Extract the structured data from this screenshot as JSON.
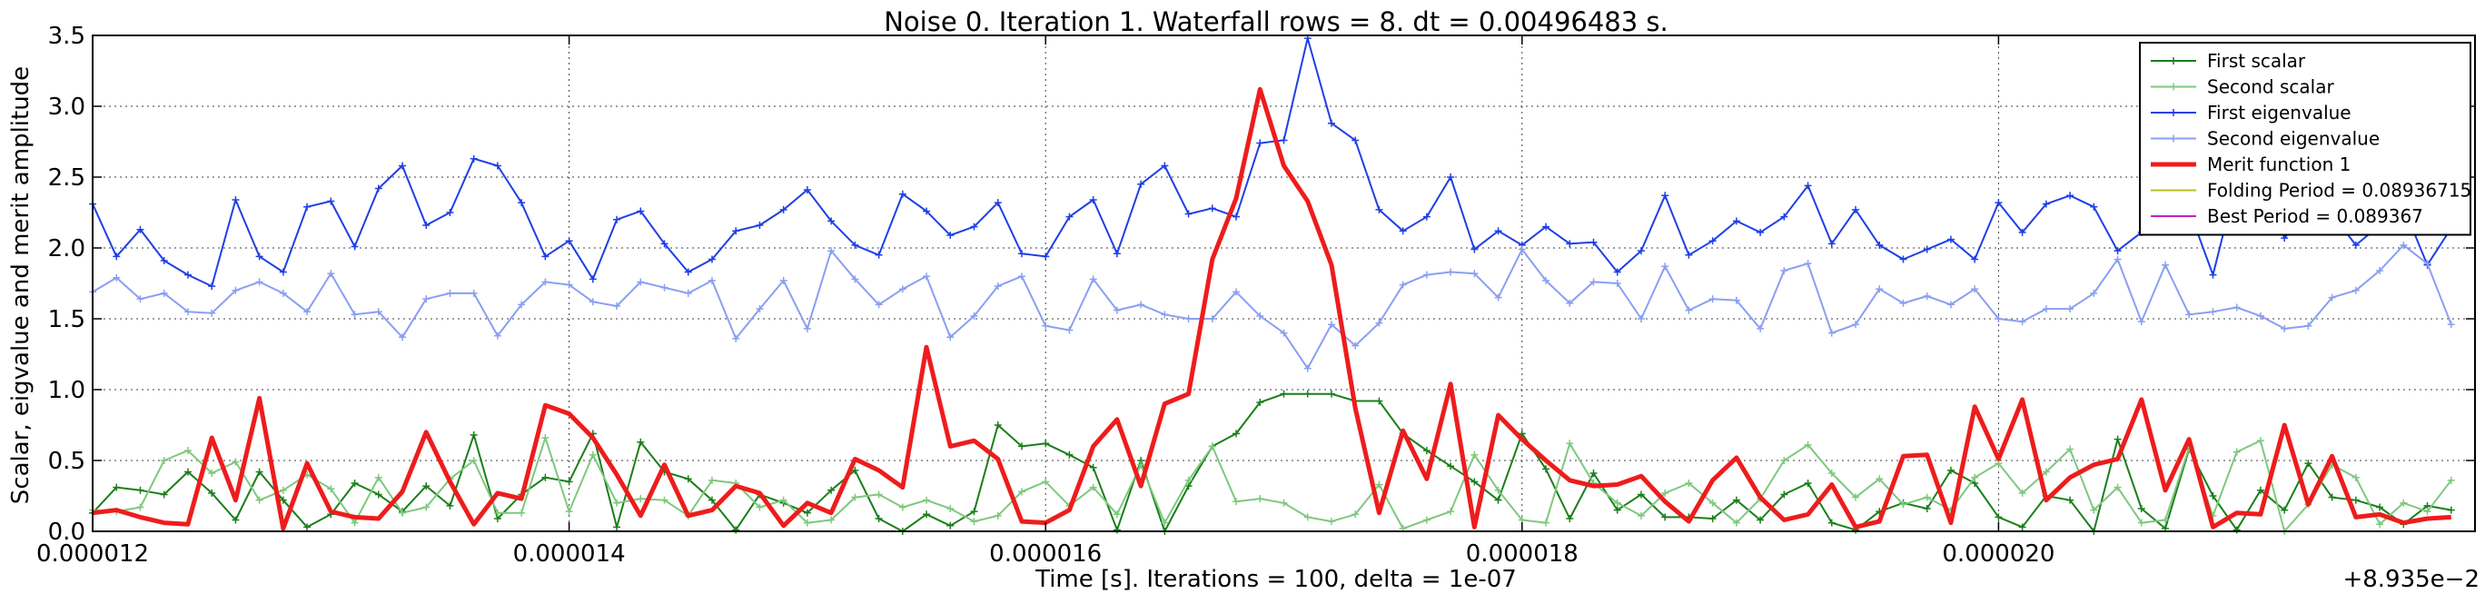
{
  "chart_data": {
    "type": "line",
    "title": "Noise 0. Iteration 1. Waterfall rows = 8. dt = 0.00496483 s.",
    "xlabel": "Time [s]. Iterations = 100, delta = 1e-07",
    "ylabel": "Scalar, eigvalue and merit amplitude",
    "x_offset_label": "+8.935e−2",
    "xlim": [
      0.0893612,
      0.0893622
    ],
    "ylim": [
      0,
      3.5
    ],
    "grid": true,
    "legend_position": "top-right",
    "x_ticks": [
      0.0893612,
      0.0893614,
      0.0893616,
      0.0893618,
      0.089362
    ],
    "x_tick_labels": [
      "0.000012",
      "0.000014",
      "0.000016",
      "0.000018",
      "0.000020"
    ],
    "y_ticks": [
      0,
      0.5,
      1.0,
      1.5,
      2.0,
      2.5,
      3.0,
      3.5
    ],
    "y_tick_labels": [
      "0.0",
      "0.5",
      "1.0",
      "1.5",
      "2.0",
      "2.5",
      "3.0",
      "3.5"
    ],
    "x": {
      "start": 0.0893612,
      "step": 1e-08,
      "count": 100
    },
    "vlines": [
      {
        "name": "Folding Period = 0.08936715",
        "x": 0.08936715,
        "color": "#bcbc1e"
      },
      {
        "name": "Best Period = 0.089367",
        "x": 0.089367,
        "color": "#c71ec7"
      }
    ],
    "series": [
      {
        "name": "First scalar",
        "color": "#1a7f1a",
        "style": "thin",
        "values": [
          0.13,
          0.31,
          0.29,
          0.26,
          0.42,
          0.27,
          0.08,
          0.42,
          0.22,
          0.03,
          0.12,
          0.34,
          0.26,
          0.14,
          0.32,
          0.18,
          0.68,
          0.09,
          0.26,
          0.38,
          0.35,
          0.69,
          0.03,
          0.63,
          0.42,
          0.37,
          0.22,
          0.01,
          0.26,
          0.2,
          0.13,
          0.29,
          0.43,
          0.09,
          0.0,
          0.12,
          0.04,
          0.14,
          0.75,
          0.6,
          0.62,
          0.54,
          0.45,
          0.01,
          0.5,
          0.0,
          0.32,
          0.6,
          0.69,
          0.91,
          0.97,
          0.97,
          0.97,
          0.92,
          0.92,
          0.69,
          0.57,
          0.46,
          0.35,
          0.22,
          0.69,
          0.44,
          0.09,
          0.41,
          0.15,
          0.26,
          0.1,
          0.1,
          0.09,
          0.22,
          0.08,
          0.26,
          0.34,
          0.06,
          0.01,
          0.14,
          0.2,
          0.16,
          0.43,
          0.34,
          0.1,
          0.03,
          0.25,
          0.22,
          0.0,
          0.65,
          0.16,
          0.02,
          0.58,
          0.25,
          0.01,
          0.29,
          0.15,
          0.48,
          0.24,
          0.22,
          0.17,
          0.05,
          0.18,
          0.15
        ]
      },
      {
        "name": "Second scalar",
        "color": "#7ec87e",
        "style": "thin",
        "values": [
          0.15,
          0.14,
          0.17,
          0.5,
          0.57,
          0.41,
          0.49,
          0.22,
          0.29,
          0.4,
          0.3,
          0.06,
          0.38,
          0.13,
          0.17,
          0.37,
          0.5,
          0.13,
          0.13,
          0.66,
          0.14,
          0.54,
          0.2,
          0.23,
          0.22,
          0.11,
          0.36,
          0.34,
          0.17,
          0.22,
          0.06,
          0.08,
          0.24,
          0.26,
          0.17,
          0.22,
          0.16,
          0.07,
          0.11,
          0.28,
          0.35,
          0.18,
          0.31,
          0.12,
          0.47,
          0.06,
          0.36,
          0.6,
          0.21,
          0.23,
          0.2,
          0.1,
          0.07,
          0.12,
          0.33,
          0.02,
          0.08,
          0.14,
          0.54,
          0.29,
          0.08,
          0.06,
          0.62,
          0.34,
          0.2,
          0.11,
          0.27,
          0.34,
          0.2,
          0.06,
          0.23,
          0.5,
          0.61,
          0.41,
          0.24,
          0.37,
          0.19,
          0.24,
          0.15,
          0.38,
          0.48,
          0.27,
          0.42,
          0.58,
          0.15,
          0.31,
          0.06,
          0.08,
          0.59,
          0.11,
          0.56,
          0.64,
          0.0,
          0.19,
          0.47,
          0.38,
          0.05,
          0.2,
          0.14,
          0.36
        ]
      },
      {
        "name": "First eigenvalue",
        "color": "#1f3fe6",
        "style": "thin",
        "values": [
          2.31,
          1.94,
          2.13,
          1.91,
          1.81,
          1.73,
          2.34,
          1.94,
          1.83,
          2.29,
          2.33,
          2.01,
          2.42,
          2.58,
          2.16,
          2.25,
          2.63,
          2.58,
          2.32,
          1.94,
          2.05,
          1.78,
          2.2,
          2.26,
          2.03,
          1.83,
          1.92,
          2.12,
          2.16,
          2.27,
          2.41,
          2.19,
          2.02,
          1.95,
          2.38,
          2.26,
          2.09,
          2.15,
          2.32,
          1.96,
          1.94,
          2.22,
          2.34,
          1.96,
          2.45,
          2.58,
          2.24,
          2.28,
          2.22,
          2.74,
          2.76,
          3.48,
          2.88,
          2.76,
          2.27,
          2.12,
          2.22,
          2.5,
          1.99,
          2.12,
          2.02,
          2.15,
          2.03,
          2.04,
          1.83,
          1.98,
          2.37,
          1.95,
          2.05,
          2.19,
          2.11,
          2.22,
          2.44,
          2.03,
          2.27,
          2.02,
          1.92,
          1.99,
          2.06,
          1.92,
          2.32,
          2.11,
          2.31,
          2.37,
          2.29,
          1.98,
          2.11,
          2.33,
          2.27,
          1.81,
          2.48,
          2.51,
          2.07,
          2.28,
          2.24,
          2.02,
          2.16,
          2.29,
          1.88,
          2.14
        ]
      },
      {
        "name": "Second eigenvalue",
        "color": "#8a9ff2",
        "style": "thin",
        "values": [
          1.69,
          1.79,
          1.64,
          1.68,
          1.55,
          1.54,
          1.7,
          1.76,
          1.68,
          1.55,
          1.82,
          1.53,
          1.55,
          1.37,
          1.64,
          1.68,
          1.68,
          1.38,
          1.6,
          1.76,
          1.74,
          1.62,
          1.59,
          1.76,
          1.72,
          1.68,
          1.77,
          1.36,
          1.57,
          1.77,
          1.43,
          1.98,
          1.78,
          1.6,
          1.71,
          1.8,
          1.37,
          1.52,
          1.73,
          1.8,
          1.45,
          1.42,
          1.78,
          1.56,
          1.6,
          1.53,
          1.5,
          1.5,
          1.69,
          1.52,
          1.4,
          1.15,
          1.46,
          1.31,
          1.47,
          1.74,
          1.81,
          1.83,
          1.82,
          1.65,
          1.99,
          1.77,
          1.61,
          1.76,
          1.75,
          1.5,
          1.87,
          1.56,
          1.64,
          1.63,
          1.43,
          1.84,
          1.89,
          1.4,
          1.46,
          1.71,
          1.61,
          1.66,
          1.6,
          1.71,
          1.5,
          1.48,
          1.57,
          1.57,
          1.68,
          1.92,
          1.48,
          1.88,
          1.53,
          1.55,
          1.58,
          1.52,
          1.43,
          1.45,
          1.65,
          1.7,
          1.84,
          2.02,
          1.89,
          1.46
        ]
      },
      {
        "name": "Merit function 1",
        "color": "#ee1c1c",
        "style": "thick",
        "values": [
          0.13,
          0.15,
          0.1,
          0.06,
          0.05,
          0.66,
          0.22,
          0.94,
          0.02,
          0.48,
          0.14,
          0.1,
          0.09,
          0.28,
          0.7,
          0.35,
          0.05,
          0.27,
          0.23,
          0.89,
          0.83,
          0.66,
          0.4,
          0.11,
          0.47,
          0.11,
          0.15,
          0.32,
          0.27,
          0.04,
          0.2,
          0.13,
          0.51,
          0.43,
          0.31,
          1.3,
          0.6,
          0.64,
          0.51,
          0.07,
          0.06,
          0.15,
          0.6,
          0.79,
          0.32,
          0.9,
          0.97,
          1.92,
          2.35,
          3.12,
          2.58,
          2.33,
          1.88,
          0.87,
          0.13,
          0.71,
          0.37,
          1.04,
          0.03,
          0.82,
          0.65,
          0.5,
          0.36,
          0.32,
          0.33,
          0.39,
          0.21,
          0.07,
          0.36,
          0.52,
          0.24,
          0.08,
          0.12,
          0.33,
          0.03,
          0.07,
          0.53,
          0.54,
          0.06,
          0.88,
          0.51,
          0.93,
          0.22,
          0.38,
          0.47,
          0.51,
          0.93,
          0.29,
          0.65,
          0.03,
          0.13,
          0.12,
          0.75,
          0.19,
          0.53,
          0.1,
          0.12,
          0.06,
          0.09,
          0.1
        ]
      }
    ]
  }
}
